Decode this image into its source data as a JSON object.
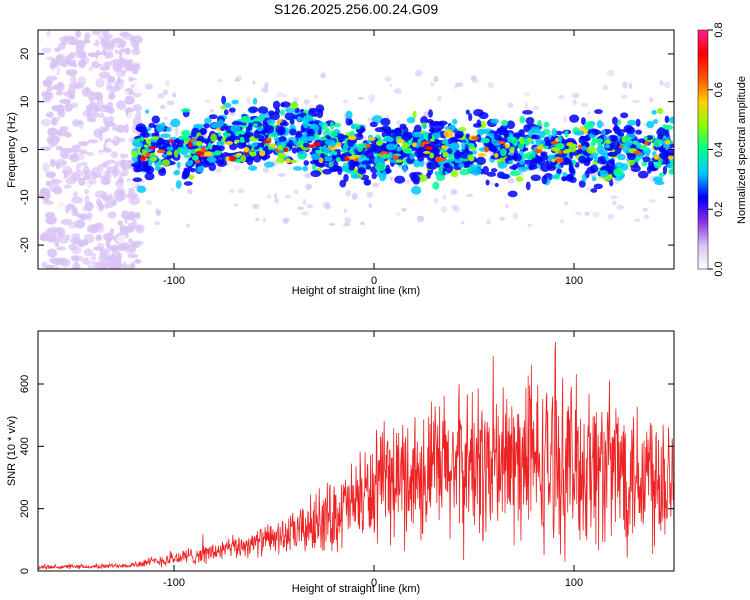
{
  "title": "S126.2025.256.00.24.G09",
  "colors": {
    "snr_line": "#ee2222",
    "cbar_stops": [
      "#ffffff",
      "#d9c2f5",
      "#8a2be2",
      "#0000ff",
      "#00c8ff",
      "#00ff90",
      "#88ff00",
      "#ffd000",
      "#ff5000",
      "#ff0000",
      "#ff1e8c"
    ]
  },
  "chart_data": [
    {
      "type": "heatmap",
      "title": "S126.2025.256.00.24.G09",
      "xlabel": "Height of straight line (km)",
      "ylabel": "Frequency (Hz)",
      "xlim": [
        -168,
        150
      ],
      "ylim": [
        -25,
        25
      ],
      "xticks": [
        -100,
        0,
        100
      ],
      "xtick_labels": [
        "-100",
        "0",
        "100"
      ],
      "yticks": [
        -20,
        -10,
        0,
        10,
        20
      ],
      "ytick_labels": [
        "-20",
        "-10",
        "0",
        "10",
        "20"
      ],
      "band_center_hz": 0,
      "band_halfwidth_hz": 6,
      "noise_region_x": [
        -168,
        -120
      ],
      "colorbar": {
        "label": "Normalized spectral amplitude",
        "range": [
          0.0,
          0.8
        ],
        "ticks": [
          0.0,
          0.2,
          0.4,
          0.6,
          0.8
        ],
        "tick_labels": [
          "0.0",
          "0.2",
          "0.4",
          "0.6",
          "0.8"
        ]
      }
    },
    {
      "type": "line",
      "xlabel": "Height of straight line (km)",
      "ylabel": "SNR (10 * v/v)",
      "xlim": [
        -168,
        150
      ],
      "ylim": [
        0,
        770
      ],
      "xticks": [
        -100,
        0,
        100
      ],
      "xtick_labels": [
        "-100",
        "0",
        "100"
      ],
      "yticks": [
        0,
        200,
        400,
        600
      ],
      "ytick_labels": [
        "0",
        "200",
        "400",
        "600"
      ],
      "series": [
        {
          "name": "SNR",
          "x": [
            -168,
            -140,
            -120,
            -100,
            -80,
            -60,
            -40,
            -30,
            -20,
            -10,
            0,
            10,
            20,
            30,
            40,
            60,
            80,
            100,
            120,
            140,
            150
          ],
          "mean": [
            12,
            14,
            20,
            40,
            60,
            90,
            120,
            150,
            180,
            220,
            260,
            290,
            310,
            320,
            330,
            340,
            345,
            340,
            330,
            320,
            320
          ],
          "spread": [
            8,
            8,
            12,
            30,
            40,
            50,
            80,
            120,
            140,
            160,
            200,
            230,
            260,
            280,
            300,
            310,
            320,
            320,
            310,
            300,
            300
          ]
        }
      ]
    }
  ]
}
